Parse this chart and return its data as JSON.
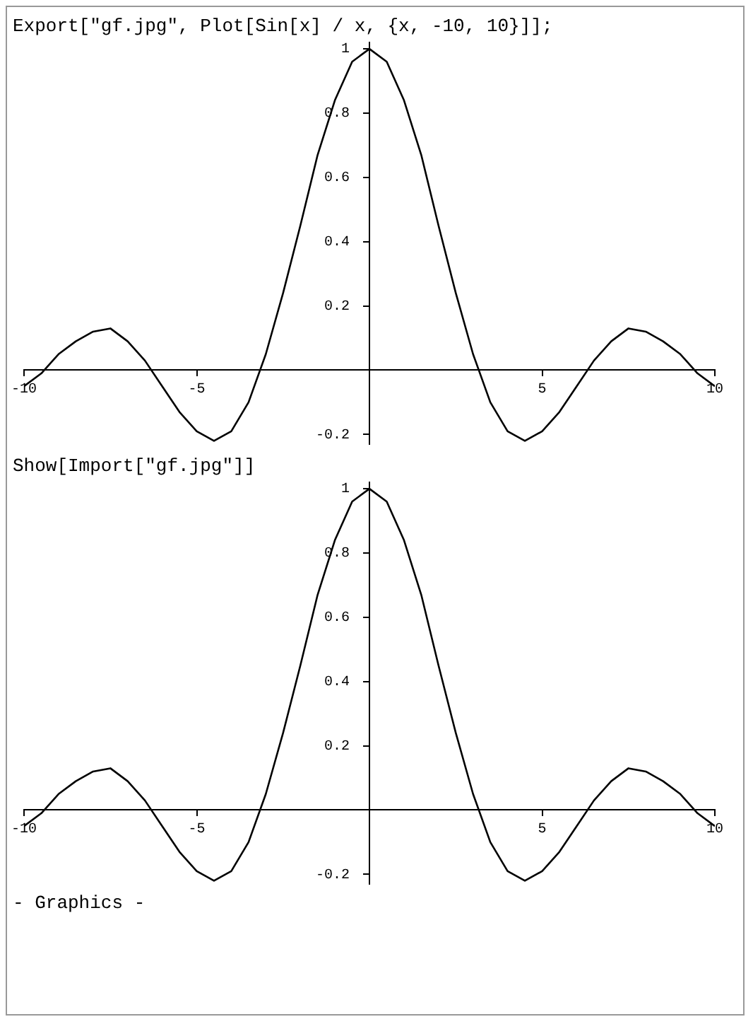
{
  "chart_data": [
    {
      "type": "line",
      "title": "Export[\"gf.jpg\", Plot[Sin[x] / x, {x, -10, 10}]];",
      "x": [
        -10,
        -9.5,
        -9,
        -8.5,
        -8,
        -7.5,
        -7,
        -6.5,
        -6,
        -5.5,
        -5,
        -4.5,
        -4,
        -3.5,
        -3,
        -2.5,
        -2,
        -1.5,
        -1,
        -0.5,
        0,
        0.5,
        1,
        1.5,
        2,
        2.5,
        3,
        3.5,
        4,
        4.5,
        5,
        5.5,
        6,
        6.5,
        7,
        7.5,
        8,
        8.5,
        9,
        9.5,
        10
      ],
      "series": [
        {
          "color": "#000000",
          "values": [
            -0.05,
            -0.01,
            0.05,
            0.09,
            0.12,
            0.13,
            0.09,
            0.03,
            -0.05,
            -0.13,
            -0.19,
            -0.22,
            -0.19,
            -0.1,
            0.05,
            0.24,
            0.45,
            0.67,
            0.84,
            0.96,
            1,
            0.96,
            0.84,
            0.67,
            0.45,
            0.24,
            0.05,
            -0.1,
            -0.19,
            -0.22,
            -0.19,
            -0.13,
            -0.05,
            0.03,
            0.09,
            0.13,
            0.12,
            0.09,
            0.05,
            -0.01,
            -0.05
          ]
        }
      ],
      "xlim": [
        -10,
        10
      ],
      "ylim": [
        -0.23,
        1.02
      ],
      "xticks": [
        -10,
        -5,
        5,
        10
      ],
      "yticks": [
        -0.2,
        0.2,
        0.4,
        0.6,
        0.8,
        1
      ],
      "marker": "none",
      "legend": false,
      "grid": false
    },
    {
      "type": "line",
      "title": "Show[Import[\"gf.jpg\"]]",
      "x": [
        -10,
        -9.5,
        -9,
        -8.5,
        -8,
        -7.5,
        -7,
        -6.5,
        -6,
        -5.5,
        -5,
        -4.5,
        -4,
        -3.5,
        -3,
        -2.5,
        -2,
        -1.5,
        -1,
        -0.5,
        0,
        0.5,
        1,
        1.5,
        2,
        2.5,
        3,
        3.5,
        4,
        4.5,
        5,
        5.5,
        6,
        6.5,
        7,
        7.5,
        8,
        8.5,
        9,
        9.5,
        10
      ],
      "series": [
        {
          "color": "#000000",
          "values": [
            -0.05,
            -0.01,
            0.05,
            0.09,
            0.12,
            0.13,
            0.09,
            0.03,
            -0.05,
            -0.13,
            -0.19,
            -0.22,
            -0.19,
            -0.1,
            0.05,
            0.24,
            0.45,
            0.67,
            0.84,
            0.96,
            1,
            0.96,
            0.84,
            0.67,
            0.45,
            0.24,
            0.05,
            -0.1,
            -0.19,
            -0.22,
            -0.19,
            -0.13,
            -0.05,
            0.03,
            0.09,
            0.13,
            0.12,
            0.09,
            0.05,
            -0.01,
            -0.05
          ]
        }
      ],
      "xlim": [
        -10,
        10
      ],
      "ylim": [
        -0.23,
        1.02
      ],
      "xticks": [
        -10,
        -5,
        5,
        10
      ],
      "yticks": [
        -0.2,
        0.2,
        0.4,
        0.6,
        0.8,
        1
      ],
      "marker": "none",
      "legend": false,
      "grid": false,
      "annotations": [
        "- Graphics -"
      ]
    }
  ]
}
